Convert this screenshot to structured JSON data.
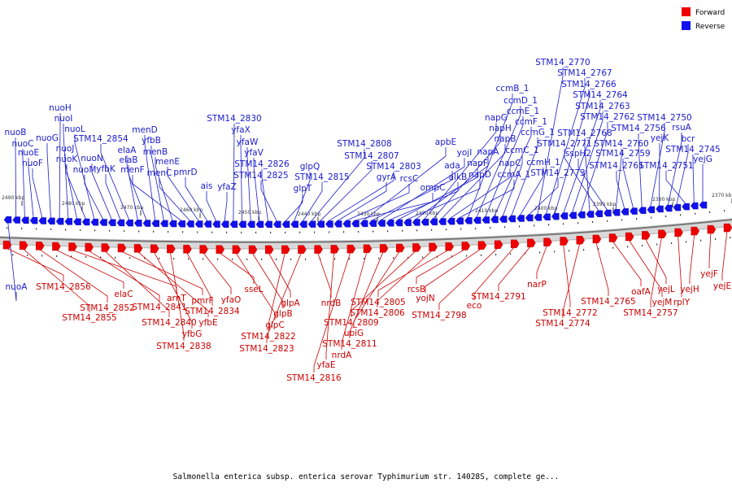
{
  "legend": {
    "items": [
      {
        "label": "Forward",
        "color": "#ee0000"
      },
      {
        "label": "Reverse",
        "color": "#1111ee"
      }
    ]
  },
  "caption": "Salmonella enterica subsp. enterica serovar Typhimurium str. 14028S, complete ge...",
  "kbp_labels": [
    "2490 kbp",
    "2480 kbp",
    "2470 kbp",
    "2460 kbp",
    "2450 kbp",
    "2440 kbp",
    "2430 kbp",
    "2420 kbp",
    "2410 kbp",
    "2400 kbp",
    "2390 kbp",
    "2380 kbp",
    "2370 kbp"
  ],
  "reverse_genes": [
    "nuoA",
    "nuoB",
    "nuoC",
    "nuoE",
    "nuoF",
    "nuoG",
    "nuoH",
    "nuoI",
    "nuoJ",
    "nuoK",
    "nuoL",
    "nuoM",
    "nuoN",
    "yfbK",
    "STM14_2854",
    "elaA",
    "elaB",
    "menD",
    "yfbB",
    "menB",
    "menF",
    "menC",
    "menE",
    "pmrD",
    "ais",
    "yfaZ",
    "STM14_2830",
    "yfaX",
    "yfaW",
    "yfaV",
    "STM14_2826",
    "STM14_2825",
    "glpT",
    "glpQ",
    "STM14_2815",
    "STM14_2808",
    "STM14_2807",
    "STM14_2803",
    "gyrA",
    "rcsC",
    "ompC",
    "apbE",
    "ada",
    "yojI",
    "alkB",
    "napF",
    "napD",
    "napA",
    "napG",
    "napH",
    "napB",
    "napC",
    "ccmA_1",
    "ccmB_1",
    "ccmD_1",
    "ccmE_1",
    "ccmF_1",
    "ccmC_1",
    "ccmG_1",
    "ccmH_1",
    "STM14_2773",
    "STM14_2770",
    "STM14_2767",
    "STM14_2766",
    "STM14_2764",
    "STM14_2763",
    "STM14_2762",
    "STM14_2768",
    "STM14_2771",
    "sspH2",
    "STM14_2760",
    "STM14_2761",
    "STM14_2759",
    "STM14_2756",
    "STM14_2750",
    "yejK",
    "rsuA",
    "bcr",
    "STM14_2751",
    "STM14_2745",
    "yejG"
  ],
  "forward_genes": [
    "STM14_2856",
    "STM14_2855",
    "STM14_2852",
    "elaC",
    "arnT",
    "STM14_2841",
    "STM14_2840",
    "pmrF",
    "yfbE",
    "yfbG",
    "STM14_2838",
    "STM14_2834",
    "yfaO",
    "sseL",
    "glpC",
    "glpB",
    "glpA",
    "STM14_2822",
    "STM14_2823",
    "nrdB",
    "yfaE",
    "STM14_2816",
    "nrdA",
    "STM14_2811",
    "ubiG",
    "STM14_2809",
    "STM14_2806",
    "STM14_2805",
    "rcsB",
    "yojN",
    "STM14_2798",
    "eco",
    "STM14_2791",
    "narP",
    "STM14_2772",
    "STM14_2774",
    "STM14_2765",
    "oafA",
    "yejM",
    "yejL",
    "STM14_2757",
    "rplY",
    "yejH",
    "yejF",
    "yejE"
  ]
}
